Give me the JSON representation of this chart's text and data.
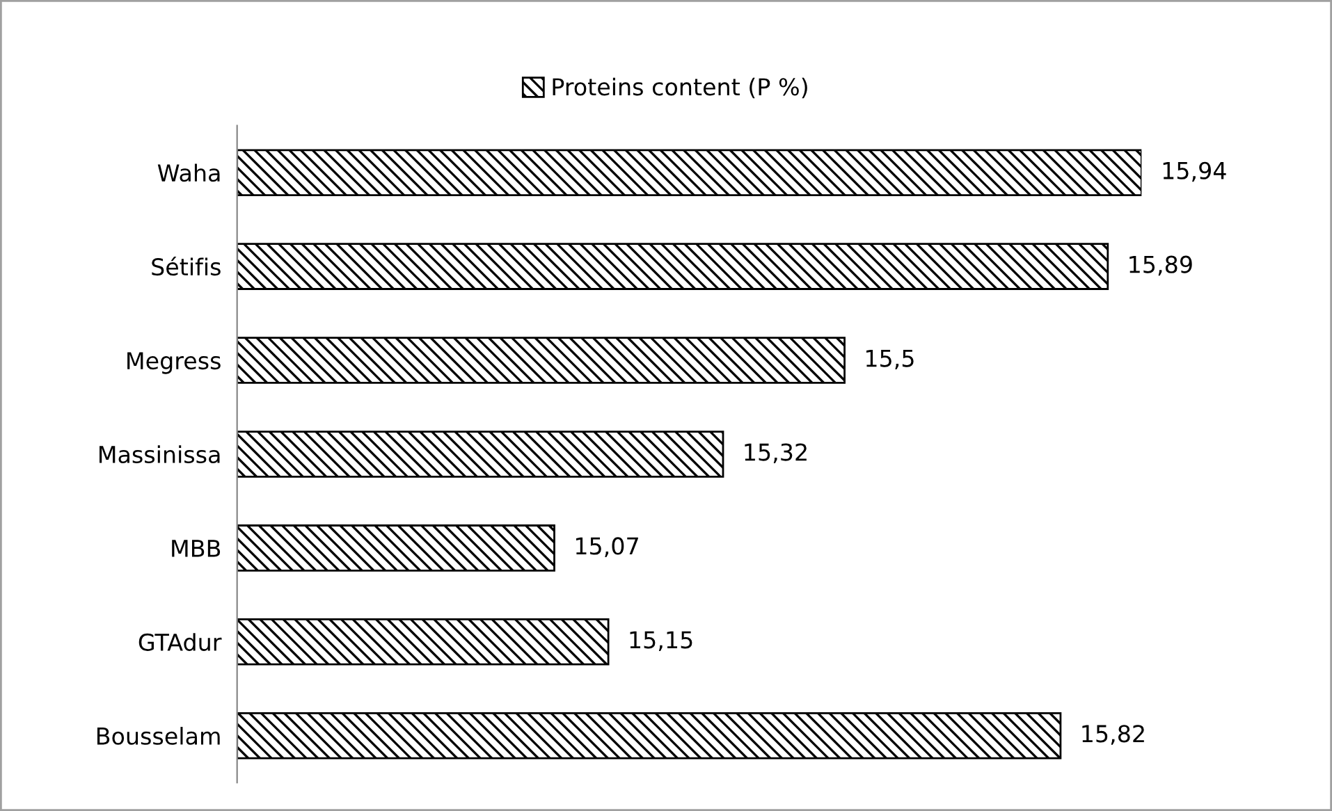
{
  "chart_data": {
    "type": "bar",
    "orientation": "horizontal",
    "categories": [
      "Waha",
      "Sétifis",
      "Megress",
      "Massinissa",
      "MBB",
      "GTAdur",
      "Bousselam"
    ],
    "series": [
      {
        "name": "Proteins content (P %)",
        "color": "#000000",
        "values": [
          15.94,
          15.89,
          15.5,
          15.32,
          15.07,
          15.15,
          15.82
        ],
        "value_labels": [
          "15,94",
          "15,89",
          "15,5",
          "15,32",
          "15,07",
          "15,15",
          "15,82"
        ]
      }
    ],
    "xlim": [
      14.6,
      15.94
    ],
    "tick_labels": "y",
    "grid": false,
    "legend": "top"
  }
}
